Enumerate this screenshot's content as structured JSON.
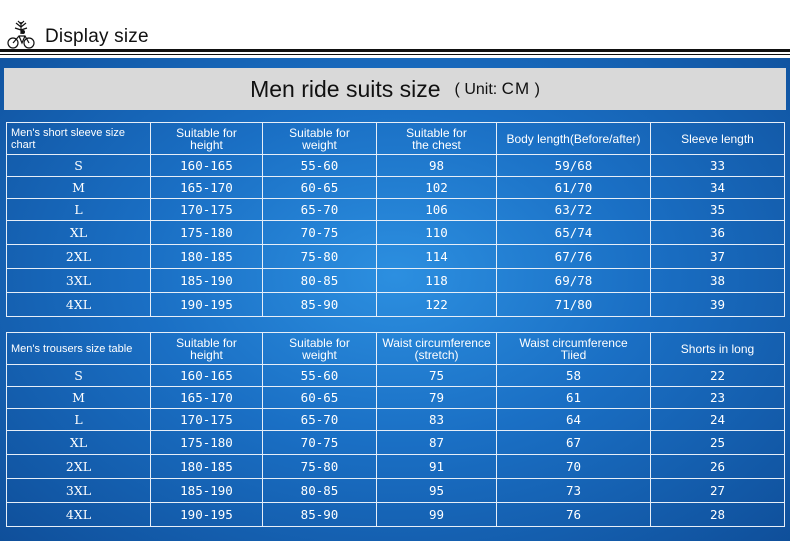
{
  "header": {
    "title": "Display size",
    "logo_icon": "cyclist-tree-icon"
  },
  "banner": {
    "title": "Men ride suits size",
    "unit_open": "( Unit: ",
    "unit_value": "CM",
    "unit_close": " )"
  },
  "colors": {
    "panel_blue": "#1a6fc4",
    "banner_gray": "#d9d9d9",
    "text_white": "#ffffff"
  },
  "short_sleeve_table": {
    "headers": [
      "Men's short sleeve size chart",
      "Suitable for\nheight",
      "Suitable for\nweight",
      "Suitable for\nthe chest",
      "Body length(Before/after)",
      "Sleeve length"
    ],
    "rows": [
      [
        "S",
        "160-165",
        "55-60",
        "98",
        "59/68",
        "33"
      ],
      [
        "M",
        "165-170",
        "60-65",
        "102",
        "61/70",
        "34"
      ],
      [
        "L",
        "170-175",
        "65-70",
        "106",
        "63/72",
        "35"
      ],
      [
        "XL",
        "175-180",
        "70-75",
        "110",
        "65/74",
        "36"
      ],
      [
        "2XL",
        "180-185",
        "75-80",
        "114",
        "67/76",
        "37"
      ],
      [
        "3XL",
        "185-190",
        "80-85",
        "118",
        "69/78",
        "38"
      ],
      [
        "4XL",
        "190-195",
        "85-90",
        "122",
        "71/80",
        "39"
      ]
    ]
  },
  "trousers_table": {
    "headers": [
      "Men's trousers size table",
      "Suitable for\nheight",
      "Suitable for\nweight",
      "Waist circumference\n(stretch)",
      "Waist circumference\nTiied",
      "Shorts in long"
    ],
    "rows": [
      [
        "S",
        "160-165",
        "55-60",
        "75",
        "58",
        "22"
      ],
      [
        "M",
        "165-170",
        "60-65",
        "79",
        "61",
        "23"
      ],
      [
        "L",
        "170-175",
        "65-70",
        "83",
        "64",
        "24"
      ],
      [
        "XL",
        "175-180",
        "70-75",
        "87",
        "67",
        "25"
      ],
      [
        "2XL",
        "180-185",
        "75-80",
        "91",
        "70",
        "26"
      ],
      [
        "3XL",
        "185-190",
        "80-85",
        "95",
        "73",
        "27"
      ],
      [
        "4XL",
        "190-195",
        "85-90",
        "99",
        "76",
        "28"
      ]
    ]
  }
}
